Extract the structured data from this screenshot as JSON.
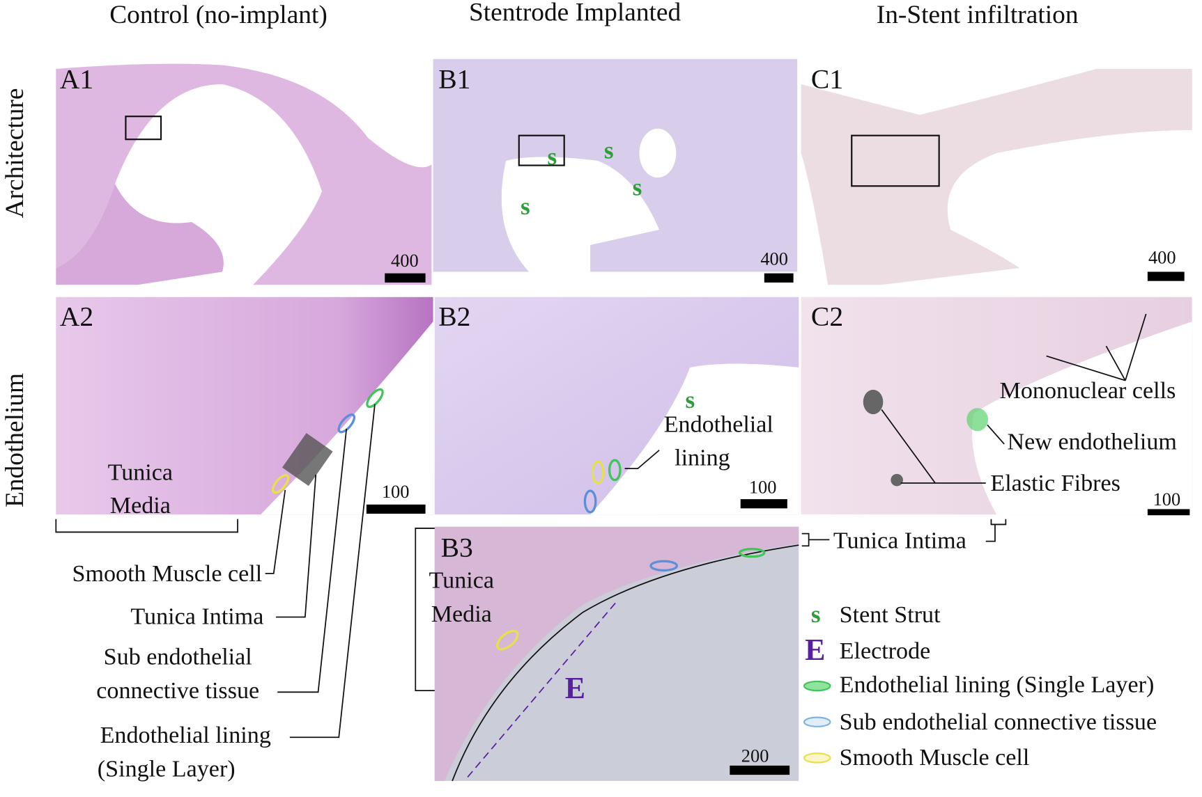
{
  "columns": [
    "Control (no-implant)",
    "Stentrode Implanted",
    "In-Stent infiltration"
  ],
  "rows": [
    "Architecture",
    "Endothelium"
  ],
  "panels": [
    {
      "label": "A1",
      "scale_bar": "400"
    },
    {
      "label": "B1",
      "scale_bar": "400"
    },
    {
      "label": "C1",
      "scale_bar": "400"
    },
    {
      "label": "A2",
      "scale_bar": "100"
    },
    {
      "label": "B2",
      "scale_bar": "100"
    },
    {
      "label": "C2",
      "scale_bar": "100"
    },
    {
      "label": "B3",
      "scale_bar": "200"
    }
  ],
  "strut_marker": "s",
  "electrode_marker": "E",
  "annotations": {
    "a2_tunica_media": [
      "Tunica",
      "Media"
    ],
    "a2_smooth_muscle": "Smooth Muscle cell",
    "a2_tunica_intima": "Tunica Intima",
    "a2_sub_endothelial": [
      "Sub endothelial",
      "connective tissue"
    ],
    "a2_endothelial_lining": [
      "Endothelial lining",
      "(Single Layer)"
    ],
    "b2_endothelial_lining": [
      "Endothelial",
      "lining"
    ],
    "b3_tunica_media": [
      "Tunica",
      "Media"
    ],
    "c2_mononuclear": "Mononuclear cells",
    "c2_new_endothelium": "New endothelium",
    "c2_elastic_fibres": "Elastic Fibres",
    "c2_tunica_intima": "Tunica Intima"
  },
  "legend": [
    "Stent Strut",
    "Electrode",
    "Endothelial lining (Single Layer)",
    "Sub endothelial connective tissue",
    "Smooth Muscle cell"
  ]
}
